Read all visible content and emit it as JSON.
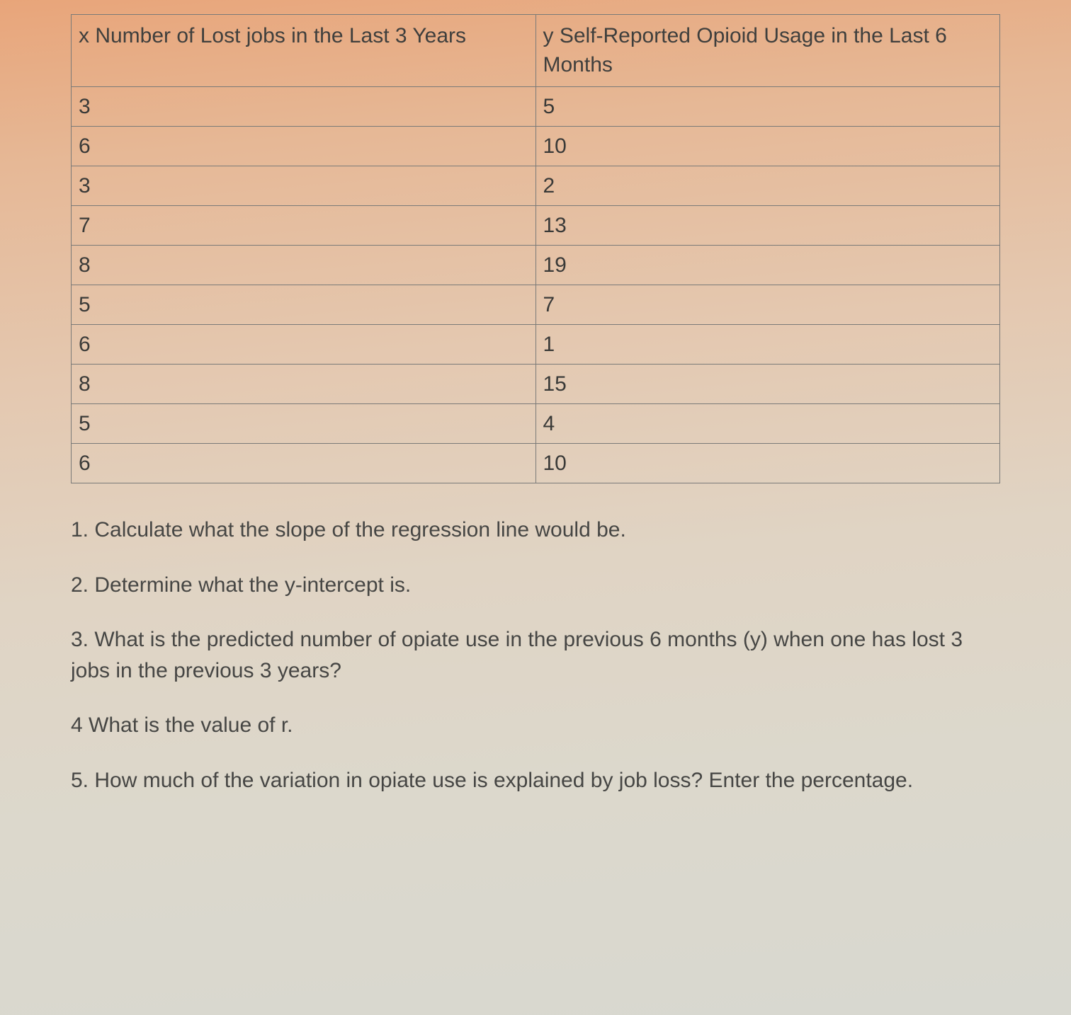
{
  "table": {
    "headers": {
      "x": "x Number of Lost jobs in the Last 3 Years",
      "y": "y Self-Reported Opioid Usage in the Last 6 Months"
    },
    "rows": [
      {
        "x": "3",
        "y": "5"
      },
      {
        "x": "6",
        "y": "10"
      },
      {
        "x": "3",
        "y": "2"
      },
      {
        "x": "7",
        "y": "13"
      },
      {
        "x": "8",
        "y": "19"
      },
      {
        "x": "5",
        "y": "7"
      },
      {
        "x": "6",
        "y": "1"
      },
      {
        "x": "8",
        "y": "15"
      },
      {
        "x": "5",
        "y": "4"
      },
      {
        "x": "6",
        "y": "10"
      }
    ],
    "border_color": "#7a7a78",
    "header_fontsize": 30,
    "cell_fontsize": 30,
    "text_color": "#3a3a38"
  },
  "questions": {
    "q1": "1. Calculate what the slope of the regression line would be.",
    "q2": "2. Determine what the y-intercept is.",
    "q3": "3. What is the predicted number of opiate use in the previous 6 months (y) when one has lost 3 jobs in the previous 3 years?",
    "q4": "4 What is the value of r.",
    "q5": "5. How much of the variation in opiate use is explained by job loss? Enter the percentage."
  },
  "background": {
    "gradient_top": "#e8a57a",
    "gradient_bottom": "#d8d8d0"
  }
}
